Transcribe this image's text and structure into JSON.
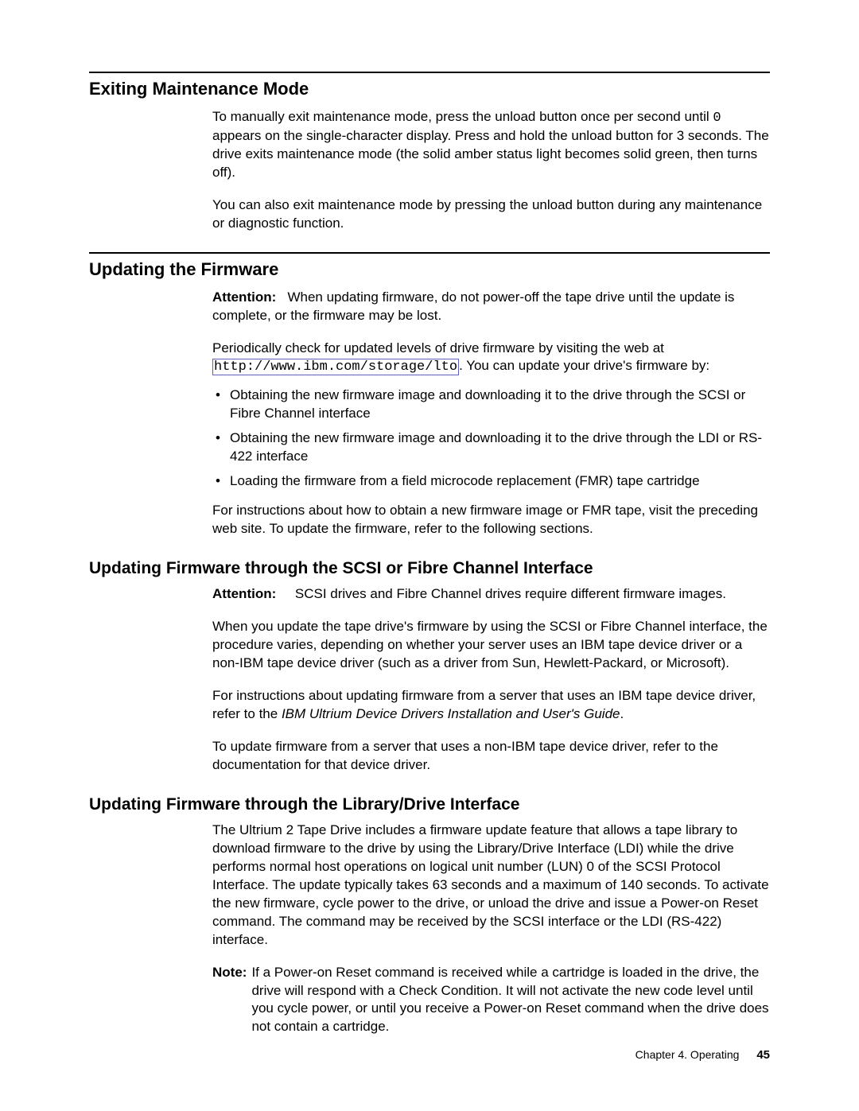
{
  "sections": {
    "exiting": {
      "heading": "Exiting Maintenance Mode",
      "para1_pre": "To manually exit maintenance mode, press the unload button once per second until ",
      "para1_zero": "0",
      "para1_post": " appears on the single-character display. Press and hold the unload button for 3 seconds. The drive exits maintenance mode (the solid amber status light becomes solid green, then turns off).",
      "para2": "You can also exit maintenance mode by pressing the unload button during any maintenance or diagnostic function."
    },
    "updating": {
      "heading": "Updating the Firmware",
      "attention_label": "Attention:",
      "attention_text": "When updating firmware, do not power-off the tape drive until the update is complete, or the firmware may be lost.",
      "para2_pre": "Periodically check for updated levels of drive firmware by visiting the web at ",
      "para2_link": "http://www.ibm.com/storage/lto",
      "para2_post": ". You can update your drive's firmware by:",
      "bullets": [
        "Obtaining the new firmware image and downloading it to the drive through the SCSI or Fibre Channel interface",
        "Obtaining the new firmware image and downloading it to the drive through the LDI or RS-422 interface",
        "Loading the firmware from a field microcode replacement (FMR) tape cartridge"
      ],
      "para3": "For instructions about how to obtain a new firmware image or FMR tape, visit the preceding web site. To update the firmware, refer to the following sections."
    },
    "scsi": {
      "heading": "Updating Firmware through the SCSI or Fibre Channel Interface",
      "attention_label": "Attention:",
      "attention_text": "SCSI drives and Fibre Channel drives require different firmware images.",
      "para2": "When you update the tape drive's firmware by using the SCSI or Fibre Channel interface, the procedure varies, depending on whether your server uses an IBM tape device driver or a non-IBM tape device driver (such as a driver from Sun, Hewlett-Packard, or Microsoft).",
      "para3_pre": "For instructions about updating firmware from a server that uses an IBM tape device driver, refer to the ",
      "para3_italic": "IBM Ultrium Device Drivers Installation and User's Guide",
      "para3_post": ".",
      "para4": "To update firmware from a server that uses a non-IBM tape device driver, refer to the documentation for that device driver."
    },
    "ldi": {
      "heading": "Updating Firmware through the Library/Drive Interface",
      "para1": "The Ultrium 2 Tape Drive includes a firmware update feature that allows a tape library to download firmware to the drive by using the Library/Drive Interface (LDI) while the drive performs normal host operations on logical unit number (LUN) 0 of the SCSI Protocol Interface. The update typically takes 63 seconds and a maximum of 140 seconds. To activate the new firmware, cycle power to the drive, or unload the drive and issue a Power-on Reset command. The command may be received by the SCSI interface or the LDI (RS-422) interface.",
      "note_label": "Note:",
      "note_text": "If a Power-on Reset command is received while a cartridge is loaded in the drive, the drive will respond with a Check Condition. It will not activate the new code level until you cycle power, or until you receive a Power-on Reset command when the drive does not contain a cartridge."
    }
  },
  "footer": {
    "chapter": "Chapter 4. Operating",
    "page": "45"
  }
}
